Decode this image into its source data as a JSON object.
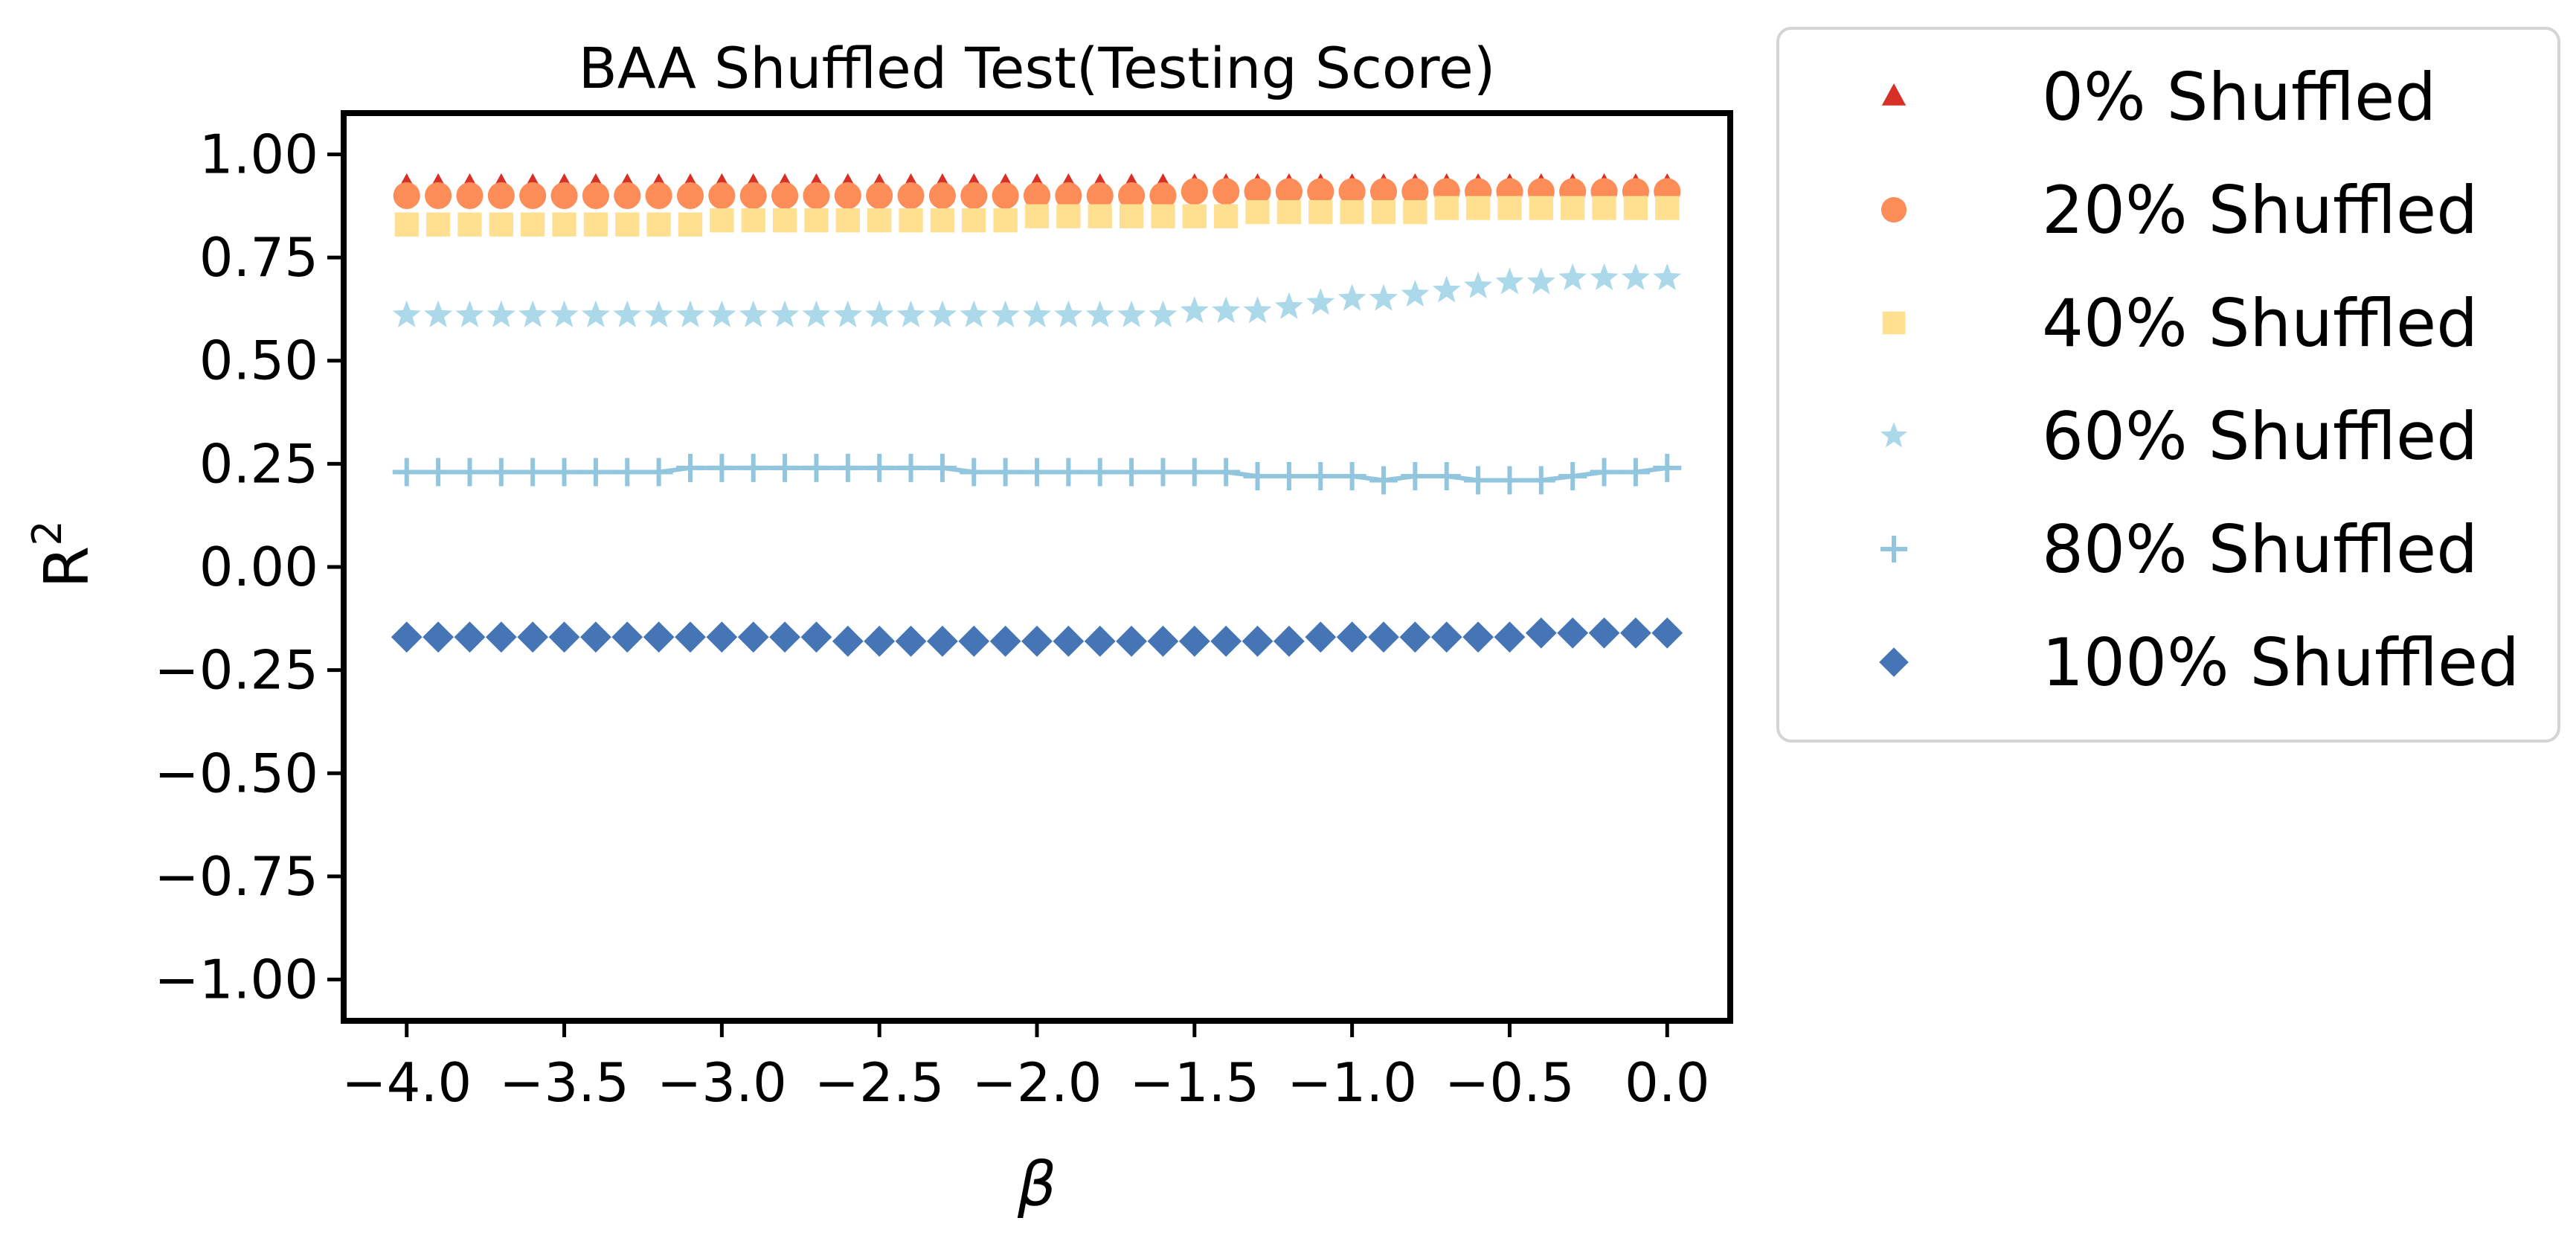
{
  "chart_data": {
    "type": "scatter",
    "title": "BAA Shuffled Test(Testing Score)",
    "xlabel": "β",
    "ylabel": "R",
    "ylabel_superscript": "2",
    "xlim": [
      -4.2,
      0.2
    ],
    "ylim": [
      -1.1,
      1.1
    ],
    "x_ticks": [
      -4.0,
      -3.5,
      -3.0,
      -2.5,
      -2.0,
      -1.5,
      -1.0,
      -0.5,
      0.0
    ],
    "x_tick_labels": [
      "−4.0",
      "−3.5",
      "−3.0",
      "−2.5",
      "−2.0",
      "−1.5",
      "−1.0",
      "−0.5",
      "0.0"
    ],
    "y_ticks": [
      1.0,
      0.75,
      0.5,
      0.25,
      0.0,
      -0.25,
      -0.5,
      -0.75,
      -1.0
    ],
    "y_tick_labels": [
      "1.00",
      "0.75",
      "0.50",
      "0.25",
      "0.00",
      "−0.25",
      "−0.50",
      "−0.75",
      "−1.00"
    ],
    "grid": false,
    "legend_position": "outside-right",
    "x": [
      -4.0,
      -3.9,
      -3.8,
      -3.7,
      -3.6,
      -3.5,
      -3.4,
      -3.3,
      -3.2,
      -3.1,
      -3.0,
      -2.9,
      -2.8,
      -2.7,
      -2.6,
      -2.5,
      -2.4,
      -2.3,
      -2.2,
      -2.1,
      -2.0,
      -1.9,
      -1.8,
      -1.7,
      -1.6,
      -1.5,
      -1.4,
      -1.3,
      -1.2,
      -1.1,
      -1.0,
      -0.9,
      -0.8,
      -0.7,
      -0.6,
      -0.5,
      -0.4,
      -0.3,
      -0.2,
      -0.1,
      0.0
    ],
    "series": [
      {
        "name": "0% Shuffled",
        "marker": "triangle",
        "color": "#d73027",
        "line": false,
        "values": [
          0.92,
          0.92,
          0.92,
          0.92,
          0.92,
          0.92,
          0.92,
          0.92,
          0.92,
          0.92,
          0.92,
          0.92,
          0.92,
          0.92,
          0.92,
          0.92,
          0.92,
          0.92,
          0.92,
          0.92,
          0.92,
          0.92,
          0.92,
          0.92,
          0.92,
          0.92,
          0.92,
          0.92,
          0.92,
          0.92,
          0.92,
          0.92,
          0.92,
          0.92,
          0.92,
          0.92,
          0.92,
          0.92,
          0.92,
          0.92,
          0.92
        ]
      },
      {
        "name": "20% Shuffled",
        "marker": "circle",
        "color": "#fc8d59",
        "line": false,
        "values": [
          0.9,
          0.9,
          0.9,
          0.9,
          0.9,
          0.9,
          0.9,
          0.9,
          0.9,
          0.9,
          0.9,
          0.9,
          0.9,
          0.9,
          0.9,
          0.9,
          0.9,
          0.9,
          0.9,
          0.9,
          0.9,
          0.9,
          0.9,
          0.9,
          0.9,
          0.91,
          0.91,
          0.91,
          0.91,
          0.91,
          0.91,
          0.91,
          0.91,
          0.91,
          0.91,
          0.91,
          0.91,
          0.91,
          0.91,
          0.91,
          0.91
        ]
      },
      {
        "name": "40% Shuffled",
        "marker": "square",
        "color": "#fee090",
        "line": false,
        "values": [
          0.83,
          0.83,
          0.83,
          0.83,
          0.83,
          0.83,
          0.83,
          0.83,
          0.83,
          0.83,
          0.84,
          0.84,
          0.84,
          0.84,
          0.84,
          0.84,
          0.84,
          0.84,
          0.84,
          0.84,
          0.85,
          0.85,
          0.85,
          0.85,
          0.85,
          0.85,
          0.85,
          0.86,
          0.86,
          0.86,
          0.86,
          0.86,
          0.86,
          0.87,
          0.87,
          0.87,
          0.87,
          0.87,
          0.87,
          0.87,
          0.87
        ]
      },
      {
        "name": "60% Shuffled",
        "marker": "star",
        "color": "#abd9e9",
        "line": false,
        "values": [
          0.61,
          0.61,
          0.61,
          0.61,
          0.61,
          0.61,
          0.61,
          0.61,
          0.61,
          0.61,
          0.61,
          0.61,
          0.61,
          0.61,
          0.61,
          0.61,
          0.61,
          0.61,
          0.61,
          0.61,
          0.61,
          0.61,
          0.61,
          0.61,
          0.61,
          0.62,
          0.62,
          0.62,
          0.63,
          0.64,
          0.65,
          0.65,
          0.66,
          0.67,
          0.68,
          0.69,
          0.69,
          0.7,
          0.7,
          0.7,
          0.7
        ]
      },
      {
        "name": "80% Shuffled",
        "marker": "plus",
        "color": "#92c5de",
        "line": true,
        "values": [
          0.23,
          0.23,
          0.23,
          0.23,
          0.23,
          0.23,
          0.23,
          0.23,
          0.23,
          0.24,
          0.24,
          0.24,
          0.24,
          0.24,
          0.24,
          0.24,
          0.24,
          0.24,
          0.23,
          0.23,
          0.23,
          0.23,
          0.23,
          0.23,
          0.23,
          0.23,
          0.23,
          0.22,
          0.22,
          0.22,
          0.22,
          0.21,
          0.22,
          0.22,
          0.21,
          0.21,
          0.21,
          0.22,
          0.23,
          0.23,
          0.24
        ]
      },
      {
        "name": "100% Shuffled",
        "marker": "diamond",
        "color": "#4575b4",
        "line": false,
        "values": [
          -0.17,
          -0.17,
          -0.17,
          -0.17,
          -0.17,
          -0.17,
          -0.17,
          -0.17,
          -0.17,
          -0.17,
          -0.17,
          -0.17,
          -0.17,
          -0.17,
          -0.18,
          -0.18,
          -0.18,
          -0.18,
          -0.18,
          -0.18,
          -0.18,
          -0.18,
          -0.18,
          -0.18,
          -0.18,
          -0.18,
          -0.18,
          -0.18,
          -0.18,
          -0.17,
          -0.17,
          -0.17,
          -0.17,
          -0.17,
          -0.17,
          -0.17,
          -0.16,
          -0.16,
          -0.16,
          -0.16,
          -0.16
        ]
      }
    ]
  }
}
